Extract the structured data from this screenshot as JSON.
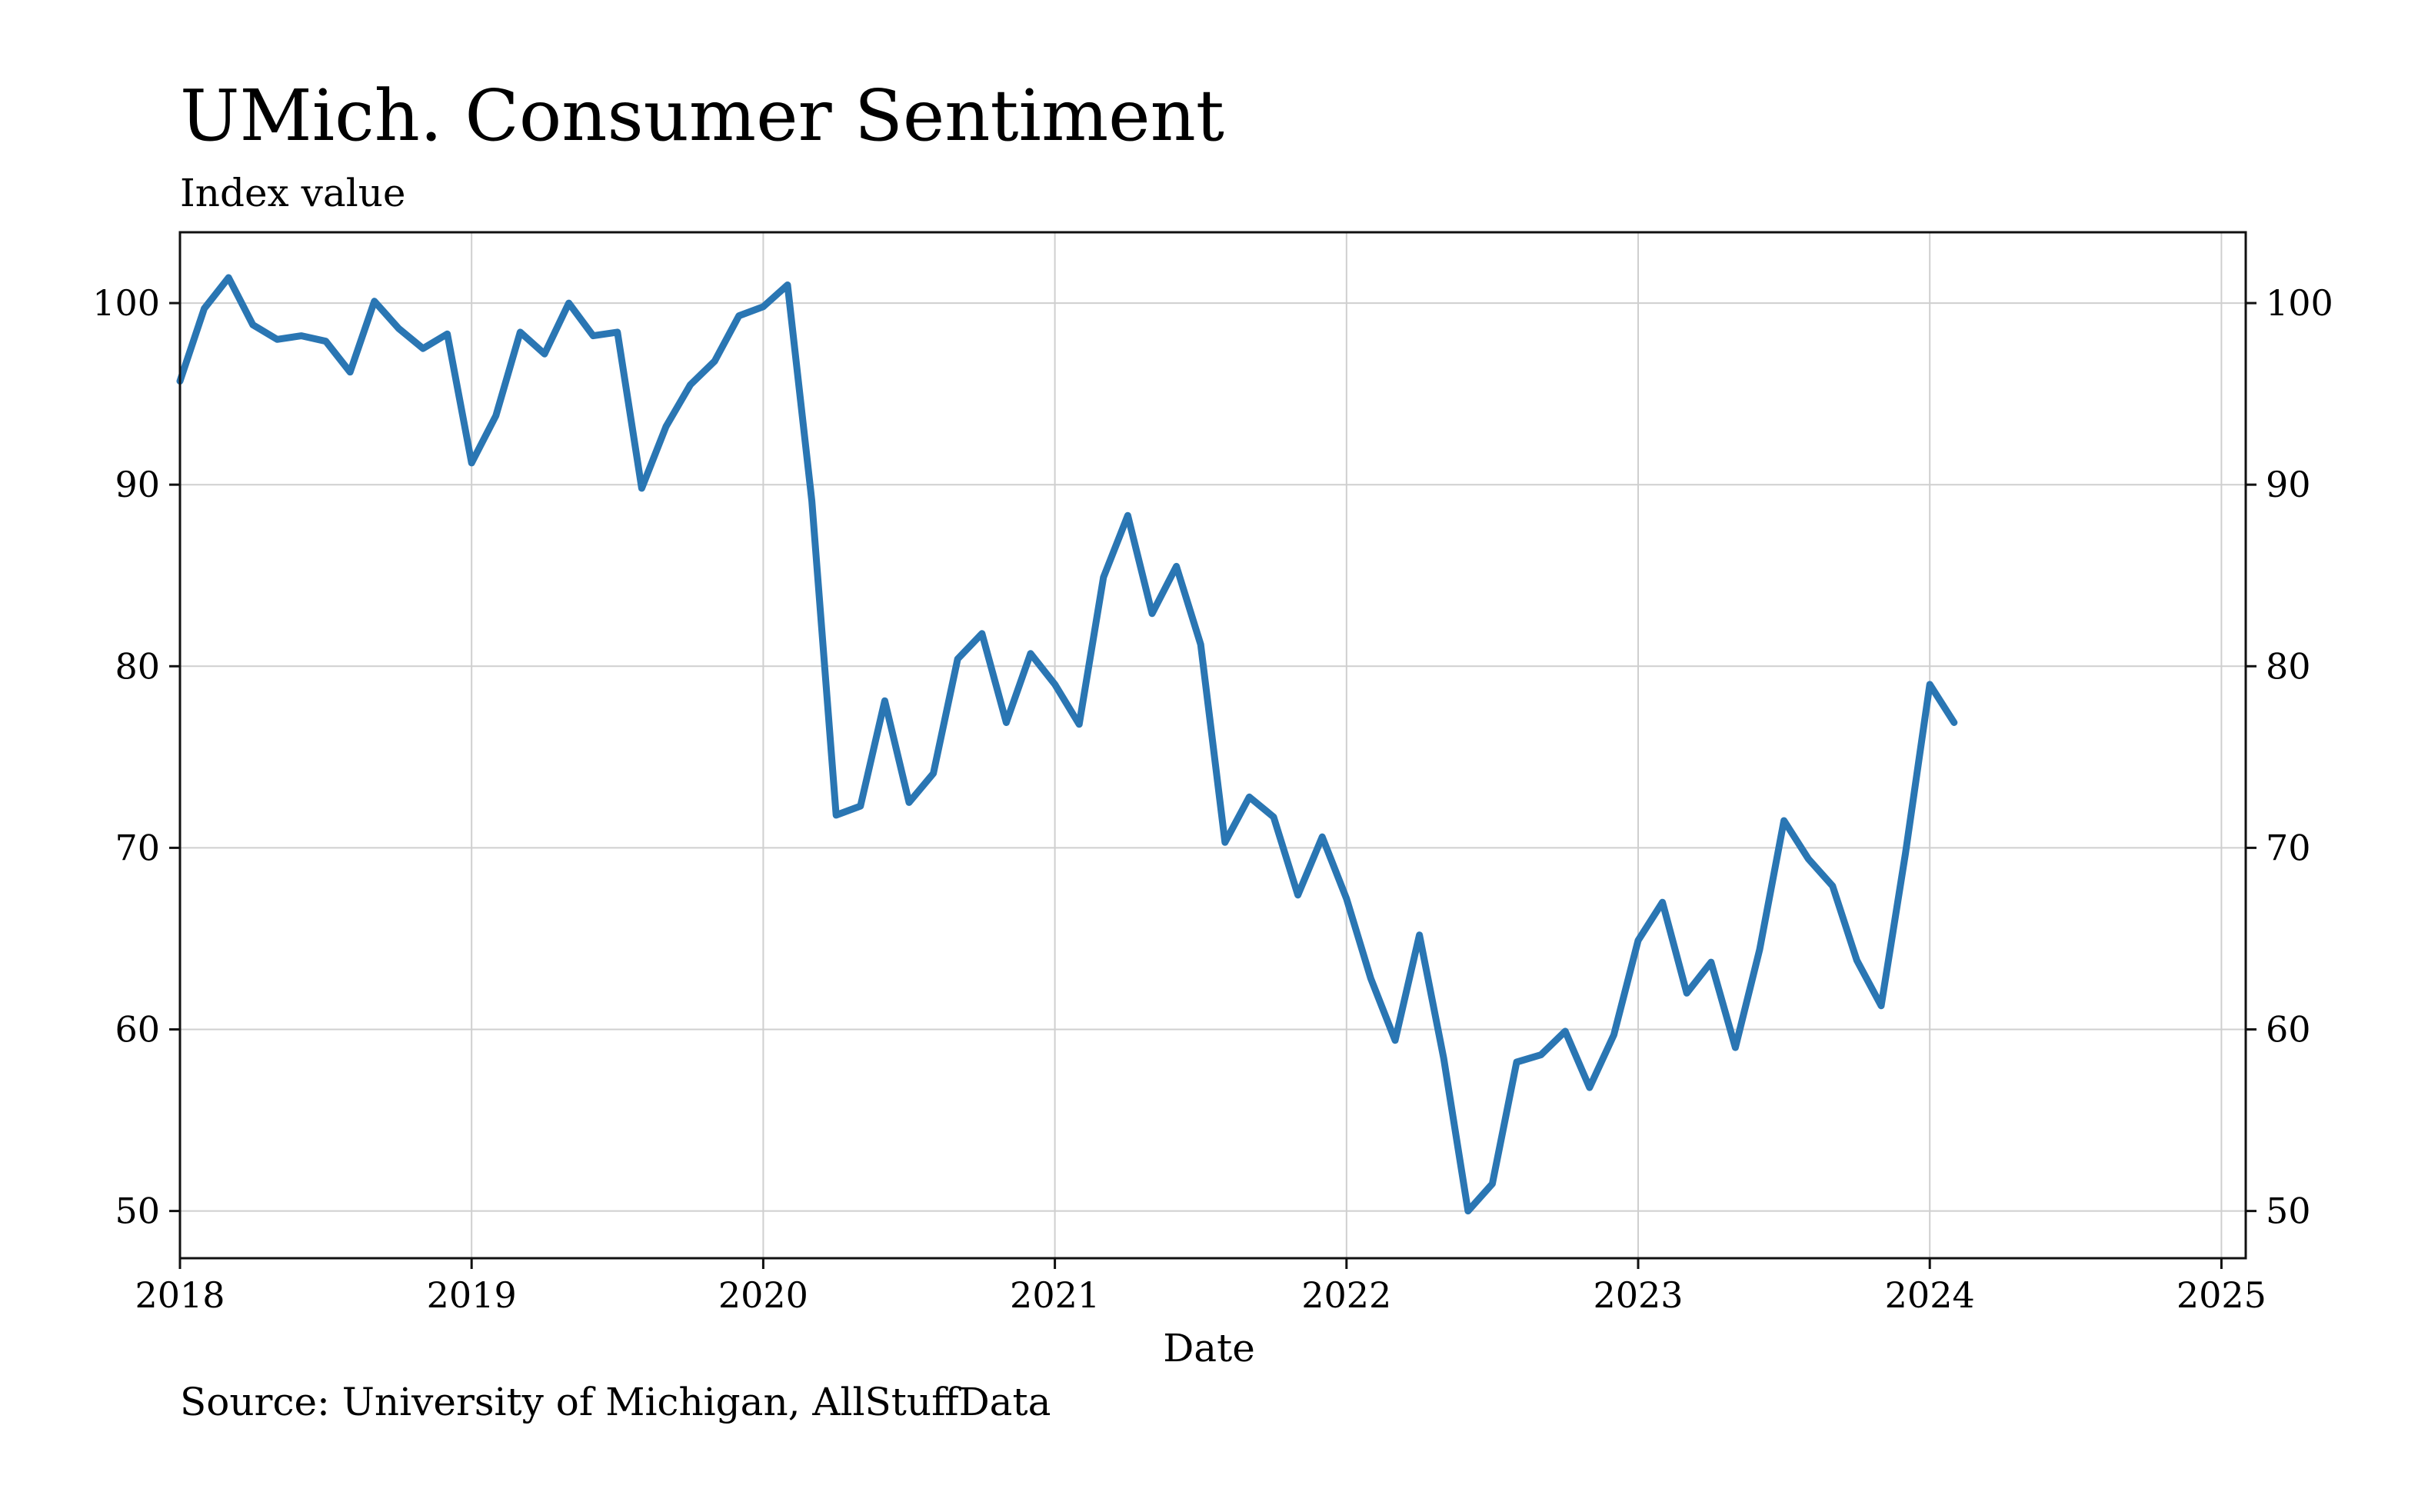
{
  "chart_data": {
    "type": "line",
    "title": "UMich. Consumer Sentiment",
    "subtitle": "Index value",
    "xlabel": "Date",
    "ylabel": "",
    "source": "Source: University of Michigan, AllStuffData",
    "xlim": [
      "2018-01",
      "2025-02"
    ],
    "ylim": [
      47.4,
      103.9
    ],
    "x_ticks": [
      "2018",
      "2019",
      "2020",
      "2021",
      "2022",
      "2023",
      "2024",
      "2025"
    ],
    "y_ticks": [
      50,
      60,
      70,
      80,
      90,
      100
    ],
    "grid": true,
    "line_color": "#2a76b3",
    "series": [
      {
        "x": [
          "2018-01",
          "2018-02",
          "2018-03",
          "2018-04",
          "2018-05",
          "2018-06",
          "2018-07",
          "2018-08",
          "2018-09",
          "2018-10",
          "2018-11",
          "2018-12",
          "2019-01",
          "2019-02",
          "2019-03",
          "2019-04",
          "2019-05",
          "2019-06",
          "2019-07",
          "2019-08",
          "2019-09",
          "2019-10",
          "2019-11",
          "2019-12",
          "2020-01",
          "2020-02",
          "2020-03",
          "2020-04",
          "2020-05",
          "2020-06",
          "2020-07",
          "2020-08",
          "2020-09",
          "2020-10",
          "2020-11",
          "2020-12",
          "2021-01",
          "2021-02",
          "2021-03",
          "2021-04",
          "2021-05",
          "2021-06",
          "2021-07",
          "2021-08",
          "2021-09",
          "2021-10",
          "2021-11",
          "2021-12",
          "2022-01",
          "2022-02",
          "2022-03",
          "2022-04",
          "2022-05",
          "2022-06",
          "2022-07",
          "2022-08",
          "2022-09",
          "2022-10",
          "2022-11",
          "2022-12",
          "2023-01",
          "2023-02",
          "2023-03",
          "2023-04",
          "2023-05",
          "2023-06",
          "2023-07",
          "2023-08",
          "2023-09",
          "2023-10",
          "2023-11",
          "2023-12",
          "2024-01",
          "2024-02"
        ],
        "y": [
          95.7,
          99.7,
          101.4,
          98.8,
          98.0,
          98.2,
          97.9,
          96.2,
          100.1,
          98.6,
          97.5,
          98.3,
          91.2,
          93.8,
          98.4,
          97.2,
          100.0,
          98.2,
          98.4,
          89.8,
          93.2,
          95.5,
          96.8,
          99.3,
          99.8,
          101.0,
          89.1,
          71.8,
          72.3,
          78.1,
          72.5,
          74.1,
          80.4,
          81.8,
          76.9,
          80.7,
          79.0,
          76.8,
          84.9,
          88.3,
          82.9,
          85.5,
          81.2,
          70.3,
          72.8,
          71.7,
          67.4,
          70.6,
          67.2,
          62.8,
          59.4,
          65.2,
          58.4,
          50.0,
          51.5,
          58.2,
          58.6,
          59.9,
          56.8,
          59.7,
          64.9,
          67.0,
          62.0,
          63.7,
          59.0,
          64.4,
          71.5,
          69.4,
          67.9,
          63.8,
          61.3,
          69.7,
          79.0,
          76.9
        ]
      }
    ]
  }
}
